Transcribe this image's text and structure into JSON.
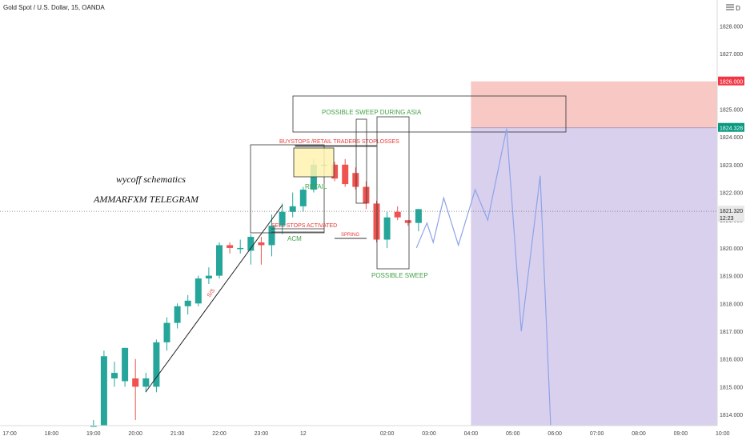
{
  "header": {
    "symbol_title": "Gold Spot / U.S. Dollar, 15, OANDA",
    "currency": "USD"
  },
  "chart_data": {
    "type": "candlestick",
    "ylim": [
      1813.6,
      1828.8
    ],
    "xlim_hours": [
      16.8,
      23.1
    ],
    "price_ticks": [
      1814,
      1815,
      1816,
      1817,
      1818,
      1819,
      1820,
      1821,
      1822,
      1823,
      1824,
      1825,
      1827,
      1828
    ],
    "time_ticks": [
      {
        "label": "17:00",
        "h": 17.0
      },
      {
        "label": "18:00",
        "h": 18.0
      },
      {
        "label": "19:00",
        "h": 19.0
      },
      {
        "label": "20:00",
        "h": 20.0
      },
      {
        "label": "21:00",
        "h": 21.0
      },
      {
        "label": "22:00",
        "h": 22.0
      },
      {
        "label": "23:00",
        "h": 23.0
      },
      {
        "label": "12",
        "h": 24.0
      },
      {
        "label": "02:00",
        "h": 26.0
      },
      {
        "label": "03:00",
        "h": 27.0
      },
      {
        "label": "04:00",
        "h": 28.0
      },
      {
        "label": "05:00",
        "h": 29.0
      },
      {
        "label": "06:00",
        "h": 30.0
      },
      {
        "label": "07:00",
        "h": 31.0
      },
      {
        "label": "08:00",
        "h": 32.0
      },
      {
        "label": "09:00",
        "h": 33.0
      },
      {
        "label": "10:00",
        "h": 34.0
      }
    ],
    "candles": [
      {
        "t": 19.0,
        "o": 1813.6,
        "h": 1813.8,
        "l": 1813.6,
        "c": 1813.6
      },
      {
        "t": 19.25,
        "o": 1813.6,
        "h": 1816.3,
        "l": 1813.6,
        "c": 1816.1
      },
      {
        "t": 19.5,
        "o": 1815.3,
        "h": 1815.9,
        "l": 1815.0,
        "c": 1815.5
      },
      {
        "t": 19.75,
        "o": 1815.2,
        "h": 1816.4,
        "l": 1815.0,
        "c": 1816.4
      },
      {
        "t": 20.0,
        "o": 1815.3,
        "h": 1816.0,
        "l": 1813.8,
        "c": 1815.0
      },
      {
        "t": 20.25,
        "o": 1815.0,
        "h": 1815.5,
        "l": 1814.8,
        "c": 1815.3
      },
      {
        "t": 20.5,
        "o": 1815.0,
        "h": 1816.7,
        "l": 1814.8,
        "c": 1816.6
      },
      {
        "t": 20.75,
        "o": 1816.6,
        "h": 1817.5,
        "l": 1816.3,
        "c": 1817.3
      },
      {
        "t": 21.0,
        "o": 1817.3,
        "h": 1818.0,
        "l": 1817.1,
        "c": 1817.9
      },
      {
        "t": 21.25,
        "o": 1817.9,
        "h": 1818.3,
        "l": 1817.6,
        "c": 1818.1
      },
      {
        "t": 21.5,
        "o": 1818.0,
        "h": 1819.0,
        "l": 1817.9,
        "c": 1818.9
      },
      {
        "t": 21.75,
        "o": 1818.9,
        "h": 1819.3,
        "l": 1818.7,
        "c": 1819.0
      },
      {
        "t": 22.0,
        "o": 1819.0,
        "h": 1820.2,
        "l": 1818.9,
        "c": 1820.1
      },
      {
        "t": 22.25,
        "o": 1820.1,
        "h": 1820.2,
        "l": 1819.8,
        "c": 1820.0
      },
      {
        "t": 22.5,
        "o": 1820.0,
        "h": 1820.3,
        "l": 1819.8,
        "c": 1820.0
      },
      {
        "t": 22.75,
        "o": 1819.9,
        "h": 1820.5,
        "l": 1819.4,
        "c": 1820.4
      },
      {
        "t": 23.0,
        "o": 1820.2,
        "h": 1820.4,
        "l": 1819.4,
        "c": 1820.1
      }
    ],
    "candles2": [
      {
        "t": 23.25,
        "o": 1820.1,
        "h": 1821.2,
        "l": 1819.7,
        "c": 1820.8
      },
      {
        "t": 23.5,
        "o": 1820.8,
        "h": 1821.6,
        "l": 1820.5,
        "c": 1821.3
      },
      {
        "t": 23.75,
        "o": 1821.3,
        "h": 1822.0,
        "l": 1821.1,
        "c": 1821.5
      },
      {
        "t": 24.0,
        "o": 1821.5,
        "h": 1822.2,
        "l": 1821.3,
        "c": 1822.1
      },
      {
        "t": 24.25,
        "o": 1822.1,
        "h": 1823.2,
        "l": 1822.0,
        "c": 1823.0
      },
      {
        "t": 24.5,
        "o": 1823.0,
        "h": 1823.2,
        "l": 1822.7,
        "c": 1823.0
      },
      {
        "t": 24.75,
        "o": 1823.0,
        "h": 1823.1,
        "l": 1822.4,
        "c": 1822.5
      },
      {
        "t": 25.0,
        "o": 1823.0,
        "h": 1823.2,
        "l": 1822.2,
        "c": 1822.3
      },
      {
        "t": 25.25,
        "o": 1822.7,
        "h": 1822.9,
        "l": 1822.1,
        "c": 1822.2
      },
      {
        "t": 25.5,
        "o": 1822.2,
        "h": 1822.4,
        "l": 1821.4,
        "c": 1821.6
      },
      {
        "t": 25.75,
        "o": 1821.6,
        "h": 1821.7,
        "l": 1820.2,
        "c": 1820.3
      },
      {
        "t": 26.0,
        "o": 1820.3,
        "h": 1821.3,
        "l": 1820.0,
        "c": 1821.1
      },
      {
        "t": 26.25,
        "o": 1821.3,
        "h": 1821.5,
        "l": 1821.0,
        "c": 1821.1
      },
      {
        "t": 26.5,
        "o": 1821.0,
        "h": 1821.0,
        "l": 1820.8,
        "c": 1820.9
      },
      {
        "t": 26.75,
        "o": 1820.9,
        "h": 1821.4,
        "l": 1820.6,
        "c": 1821.4
      }
    ],
    "projection": [
      [
        26.7,
        1820.0
      ],
      [
        26.95,
        1820.9
      ],
      [
        27.1,
        1820.2
      ],
      [
        27.35,
        1821.8
      ],
      [
        27.7,
        1820.1
      ],
      [
        28.1,
        1822.1
      ],
      [
        28.4,
        1821.0
      ],
      [
        28.85,
        1824.3
      ],
      [
        29.2,
        1817.0
      ],
      [
        29.65,
        1822.6
      ],
      [
        29.9,
        1813.6
      ]
    ],
    "last_price": 1821.32,
    "last_price_label": "1821.320",
    "countdown": "12:23",
    "stop_zone_top": 1826.0,
    "stop_zone_top_label": "1826.000",
    "entry": 1824.328,
    "entry_label": "1824.328",
    "zone_start_h": 28.0
  },
  "annotations": {
    "wyckoff": "wycoff schematics",
    "telegram": "AMMARFXM TELEGRAM",
    "asia_sweep": "POSSIBLE SWEEP DURING ASIA",
    "buystops": "BUYSTOPS /RETAIL TRADERS STOPLOSSES",
    "retail": "RETAIL",
    "sell_stops": "SELL STOPS ACTIVATED",
    "acm": "ACM",
    "possible_sweep": "POSSIBLE SWEEP",
    "trendline_label": "S/S",
    "spring_label": "SPRING"
  },
  "colors": {
    "up": "#26a69a",
    "down": "#ef5350",
    "sell_zone": "#f7c8c4",
    "buy_zone": "#d9d0ee",
    "projection": "#8ea3e8",
    "red_badge": "#f23645",
    "green_badge": "#089981",
    "label_green": "#43a047",
    "label_red": "#e53935"
  }
}
